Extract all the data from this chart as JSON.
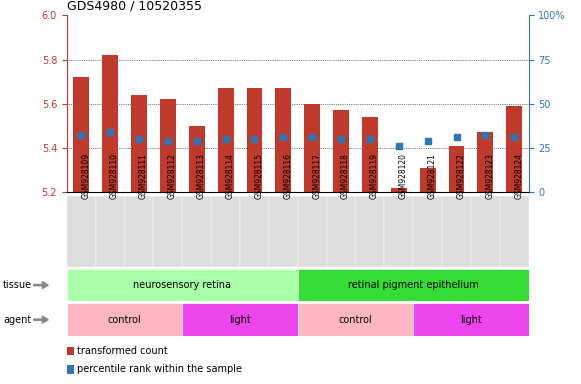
{
  "title": "GDS4980 / 10520355",
  "samples": [
    "GSM928109",
    "GSM928110",
    "GSM928111",
    "GSM928112",
    "GSM928113",
    "GSM928114",
    "GSM928115",
    "GSM928116",
    "GSM928117",
    "GSM928118",
    "GSM928119",
    "GSM928120",
    "GSM928121",
    "GSM928122",
    "GSM928123",
    "GSM928124"
  ],
  "bar_tops": [
    5.72,
    5.82,
    5.64,
    5.62,
    5.5,
    5.67,
    5.67,
    5.67,
    5.6,
    5.57,
    5.54,
    5.22,
    5.31,
    5.41,
    5.47,
    5.59
  ],
  "blue_values": [
    5.46,
    5.47,
    5.44,
    5.43,
    5.43,
    5.44,
    5.44,
    5.45,
    5.45,
    5.44,
    5.44,
    5.41,
    5.43,
    5.45,
    5.46,
    5.45
  ],
  "bar_bottom": 5.2,
  "ylim_left": [
    5.2,
    6.0
  ],
  "ylim_right": [
    0,
    100
  ],
  "yticks_left": [
    5.2,
    5.4,
    5.6,
    5.8,
    6.0
  ],
  "yticks_right": [
    0,
    25,
    50,
    75,
    100
  ],
  "ytick_labels_right": [
    "0",
    "25",
    "50",
    "75",
    "100%"
  ],
  "bar_color": "#C0392B",
  "blue_color": "#2E75B6",
  "tissue_groups": [
    {
      "label": "neurosensory retina",
      "start": 0,
      "end": 8,
      "color": "#AAFFAA"
    },
    {
      "label": "retinal pigment epithelium",
      "start": 8,
      "end": 16,
      "color": "#33DD33"
    }
  ],
  "agent_groups": [
    {
      "label": "control",
      "start": 0,
      "end": 4,
      "color": "#FFB6C1"
    },
    {
      "label": "light",
      "start": 4,
      "end": 8,
      "color": "#EE44EE"
    },
    {
      "label": "control",
      "start": 8,
      "end": 12,
      "color": "#FFB6C1"
    },
    {
      "label": "light",
      "start": 12,
      "end": 16,
      "color": "#EE44EE"
    }
  ],
  "legend_items": [
    {
      "label": "transformed count",
      "color": "#C0392B"
    },
    {
      "label": "percentile rank within the sample",
      "color": "#2E75B6"
    }
  ],
  "tissue_label": "tissue",
  "agent_label": "agent",
  "grid_color": "black",
  "title_color": "black",
  "left_axis_color": "#C0392B",
  "right_axis_color": "#2E75B6",
  "xtick_bg": "#DDDDDD"
}
